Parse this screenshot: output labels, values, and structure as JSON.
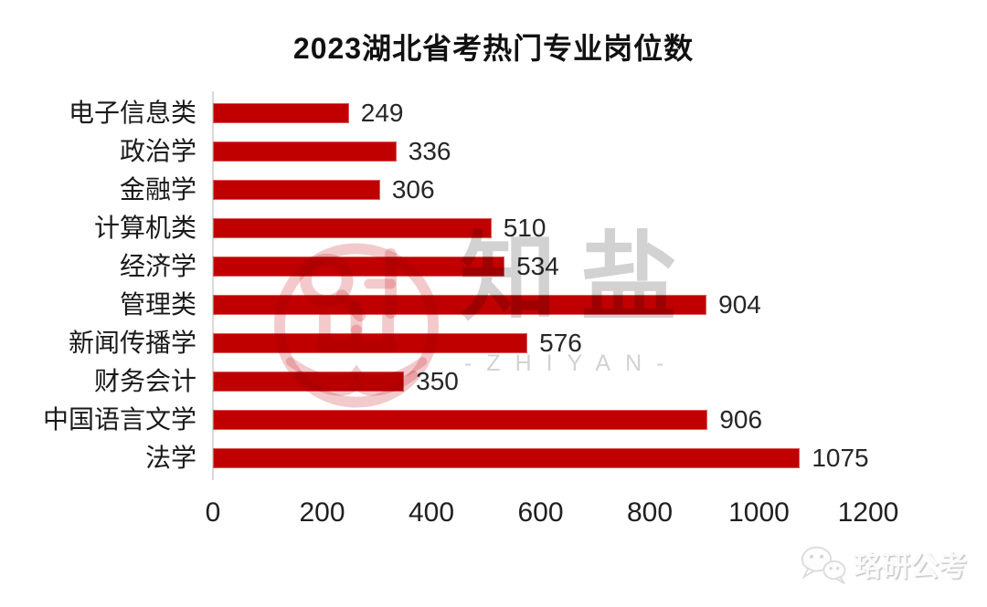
{
  "chart_data": {
    "type": "bar",
    "orientation": "horizontal",
    "title": "2023湖北省考热门专业岗位数",
    "categories": [
      "电子信息类",
      "政治学",
      "金融学",
      "计算机类",
      "经济学",
      "管理类",
      "新闻传播学",
      "财务会计",
      "中国语言文学",
      "法学"
    ],
    "values": [
      249,
      336,
      306,
      510,
      534,
      904,
      576,
      350,
      906,
      1075
    ],
    "xlabel": "",
    "ylabel": "",
    "xlim": [
      0,
      1200
    ],
    "xticks": [
      0,
      200,
      400,
      600,
      800,
      1000,
      1200
    ],
    "bar_color": "#c00000",
    "value_labels_shown": true,
    "grid": false,
    "legend": false
  },
  "watermark": {
    "center_text": "知盐",
    "center_subtext": "-ZHIYAN-",
    "logo_icon": "zhiyan-book-logo",
    "text_color": "#d2d2d2",
    "logo_color": "rgba(200,35,40,0.24)"
  },
  "footer_watermark": {
    "icon": "wechat-icon",
    "text": "珞研公考"
  }
}
